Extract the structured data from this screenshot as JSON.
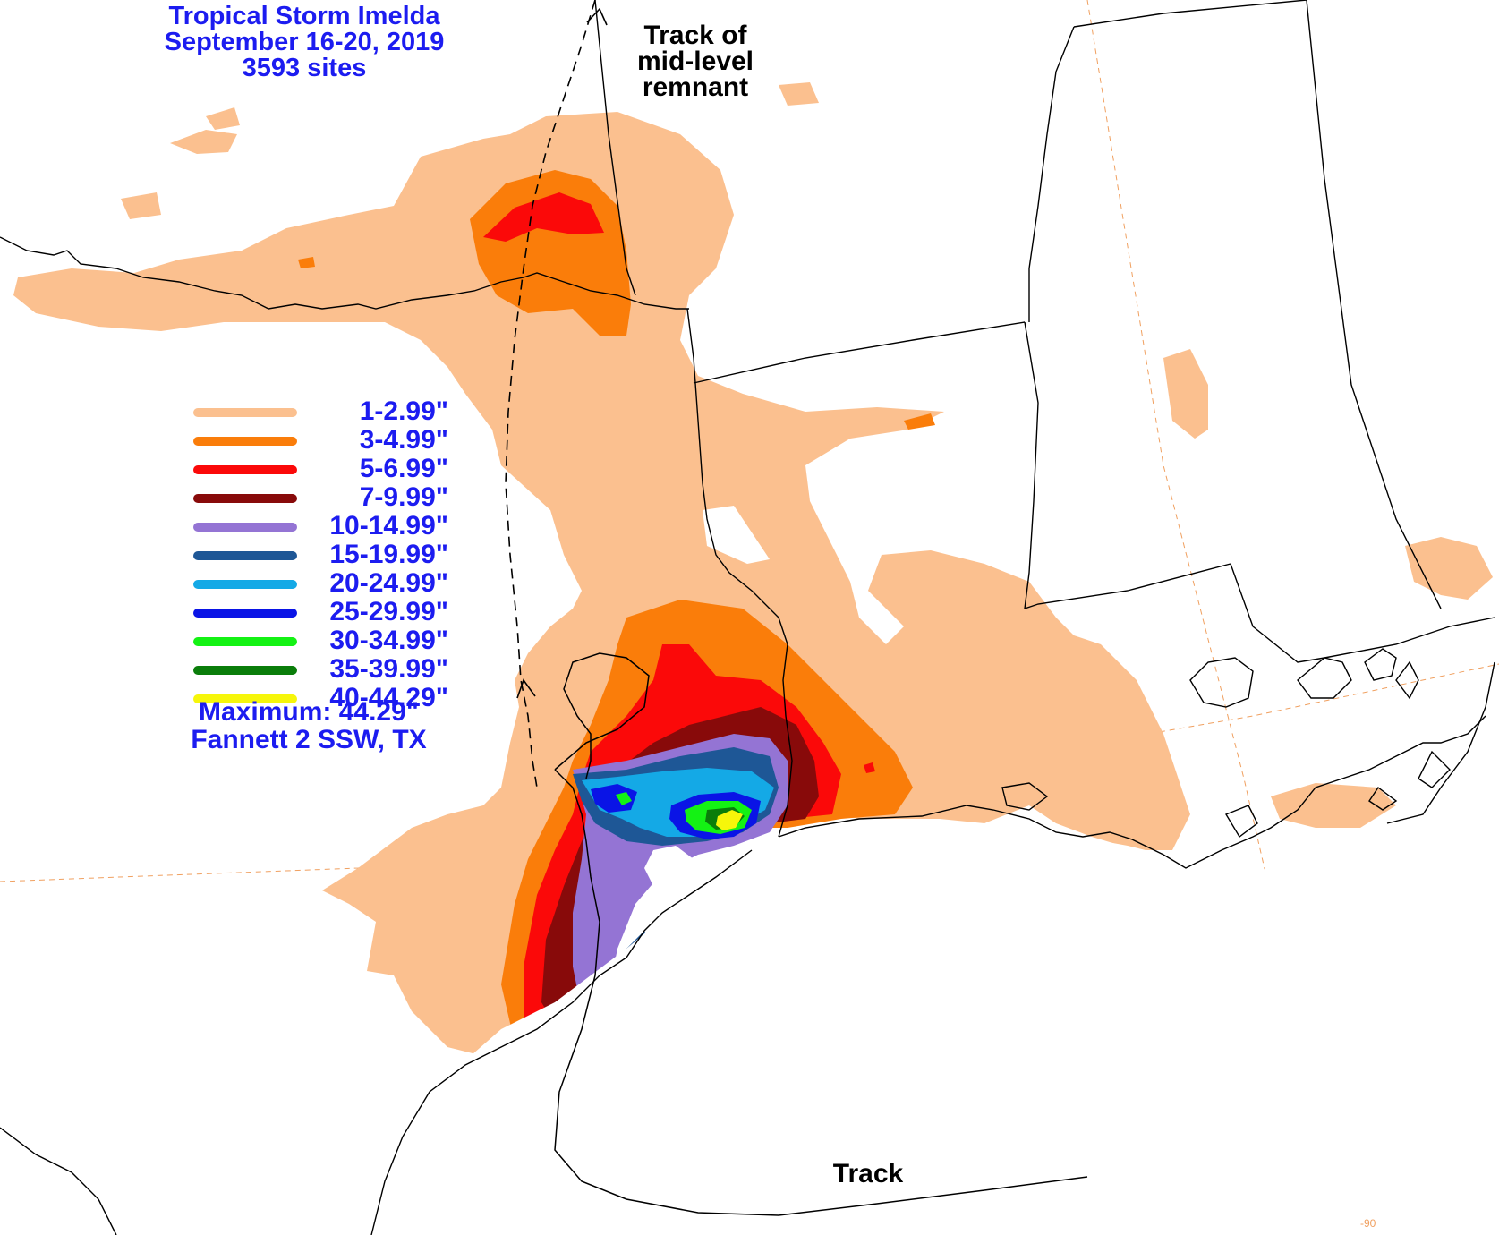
{
  "title": {
    "line1": "Tropical Storm Imelda",
    "line2": "September 16-20, 2019",
    "line3": "3593 sites"
  },
  "annotations": {
    "remnant_line1": "Track of",
    "remnant_line2": "mid-level",
    "remnant_line3": "remnant",
    "track": "Track",
    "longitude_tick": "-90"
  },
  "legend": {
    "items": [
      {
        "label": "1-2.99\"",
        "color": "#fbc08f"
      },
      {
        "label": "3-4.99\"",
        "color": "#fa7d0a"
      },
      {
        "label": "5-6.99\"",
        "color": "#fb0909"
      },
      {
        "label": "7-9.99\"",
        "color": "#880a0a"
      },
      {
        "label": "10-14.99\"",
        "color": "#9474d4"
      },
      {
        "label": "15-19.99\"",
        "color": "#1e5796"
      },
      {
        "label": "20-24.99\"",
        "color": "#14a9e6"
      },
      {
        "label": "25-29.99\"",
        "color": "#0a14e6"
      },
      {
        "label": "30-34.99\"",
        "color": "#14f214"
      },
      {
        "label": "35-39.99\"",
        "color": "#0a7d0a"
      },
      {
        "label": "40-44.29\"",
        "color": "#f6f60a"
      }
    ]
  },
  "maximum": {
    "line1": "Maximum: 44.29\"",
    "line2": "Fannett 2 SSW, TX"
  }
}
